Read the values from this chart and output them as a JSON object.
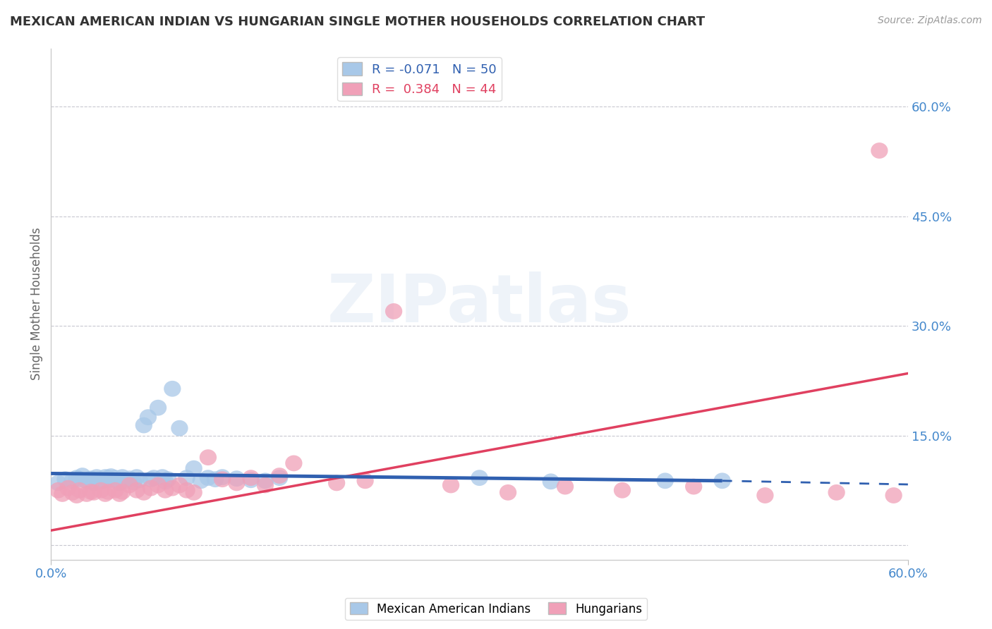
{
  "title": "MEXICAN AMERICAN INDIAN VS HUNGARIAN SINGLE MOTHER HOUSEHOLDS CORRELATION CHART",
  "source": "Source: ZipAtlas.com",
  "ylabel": "Single Mother Households",
  "xlabel": "",
  "xlim": [
    0.0,
    0.6
  ],
  "ylim": [
    -0.02,
    0.68
  ],
  "ytick_positions": [
    0.0,
    0.15,
    0.3,
    0.45,
    0.6
  ],
  "ytick_labels": [
    "",
    "15.0%",
    "30.0%",
    "45.0%",
    "60.0%"
  ],
  "xtick_positions": [
    0.0,
    0.6
  ],
  "xtick_labels": [
    "0.0%",
    "60.0%"
  ],
  "blue_R": -0.071,
  "blue_N": 50,
  "pink_R": 0.384,
  "pink_N": 44,
  "blue_label": "Mexican American Indians",
  "pink_label": "Hungarians",
  "watermark": "ZIPatlas",
  "blue_color": "#a8c8e8",
  "pink_color": "#f0a0b8",
  "blue_line_color": "#3060b0",
  "pink_line_color": "#e04060",
  "title_color": "#333333",
  "axis_label_color": "#4488cc",
  "grid_color": "#c8c8d0",
  "background_color": "#ffffff",
  "blue_scatter_x": [
    0.005,
    0.01,
    0.015,
    0.018,
    0.02,
    0.022,
    0.025,
    0.028,
    0.03,
    0.032,
    0.033,
    0.035,
    0.038,
    0.04,
    0.04,
    0.042,
    0.045,
    0.045,
    0.048,
    0.05,
    0.05,
    0.052,
    0.055,
    0.058,
    0.06,
    0.062,
    0.065,
    0.068,
    0.07,
    0.072,
    0.075,
    0.078,
    0.08,
    0.082,
    0.085,
    0.09,
    0.095,
    0.1,
    0.105,
    0.11,
    0.115,
    0.12,
    0.13,
    0.14,
    0.15,
    0.16,
    0.3,
    0.35,
    0.43,
    0.47
  ],
  "blue_scatter_y": [
    0.085,
    0.09,
    0.088,
    0.092,
    0.09,
    0.095,
    0.088,
    0.091,
    0.085,
    0.093,
    0.09,
    0.087,
    0.093,
    0.089,
    0.092,
    0.094,
    0.088,
    0.092,
    0.085,
    0.09,
    0.093,
    0.088,
    0.091,
    0.086,
    0.093,
    0.089,
    0.164,
    0.175,
    0.09,
    0.092,
    0.188,
    0.093,
    0.087,
    0.09,
    0.214,
    0.16,
    0.092,
    0.105,
    0.088,
    0.092,
    0.09,
    0.093,
    0.091,
    0.089,
    0.088,
    0.092,
    0.092,
    0.087,
    0.088,
    0.088
  ],
  "pink_scatter_x": [
    0.005,
    0.008,
    0.012,
    0.015,
    0.018,
    0.02,
    0.025,
    0.028,
    0.03,
    0.035,
    0.038,
    0.04,
    0.045,
    0.048,
    0.05,
    0.055,
    0.06,
    0.065,
    0.07,
    0.075,
    0.08,
    0.085,
    0.09,
    0.095,
    0.1,
    0.11,
    0.12,
    0.13,
    0.14,
    0.15,
    0.16,
    0.17,
    0.2,
    0.22,
    0.24,
    0.28,
    0.32,
    0.36,
    0.4,
    0.45,
    0.5,
    0.55,
    0.59,
    0.58
  ],
  "pink_scatter_y": [
    0.075,
    0.07,
    0.078,
    0.072,
    0.068,
    0.075,
    0.07,
    0.073,
    0.072,
    0.075,
    0.07,
    0.073,
    0.075,
    0.07,
    0.073,
    0.082,
    0.075,
    0.072,
    0.078,
    0.082,
    0.075,
    0.078,
    0.082,
    0.075,
    0.072,
    0.12,
    0.09,
    0.085,
    0.092,
    0.082,
    0.095,
    0.112,
    0.085,
    0.088,
    0.32,
    0.082,
    0.072,
    0.08,
    0.075,
    0.08,
    0.068,
    0.072,
    0.068,
    0.54
  ],
  "blue_line_x0": 0.0,
  "blue_line_x1": 0.47,
  "blue_line_x2": 0.6,
  "blue_line_y_start": 0.098,
  "blue_line_y_mid": 0.088,
  "blue_line_y_end": 0.083,
  "pink_line_x0": 0.0,
  "pink_line_x1": 0.6,
  "pink_line_y0": 0.02,
  "pink_line_y1": 0.235
}
